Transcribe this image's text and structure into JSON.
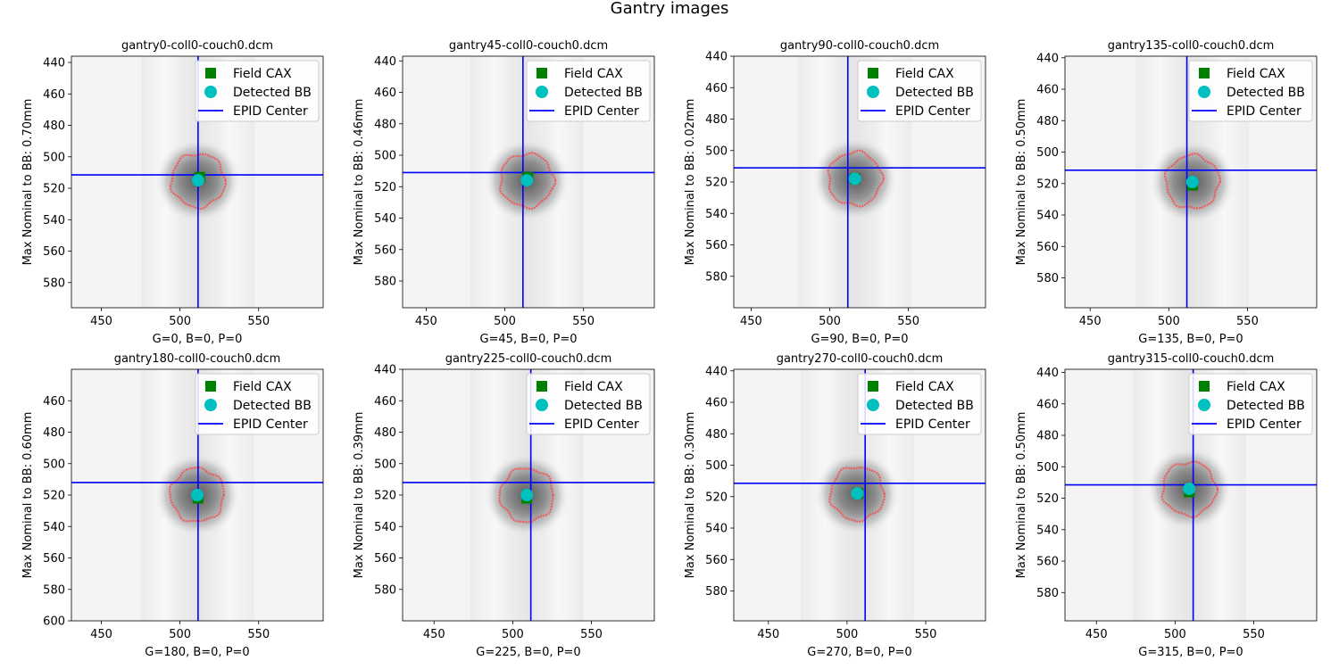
{
  "figure": {
    "title": "Gantry images"
  },
  "legend": {
    "field_cax": "Field CAX",
    "detected_bb": "Detected BB",
    "epid_center": "EPID Center"
  },
  "colors": {
    "field_cax": "#008000",
    "detected_bb": "#00bfbf",
    "epid_center": "#0000ff",
    "bb_contour": "#ff4040"
  },
  "chart_data": [
    {
      "type": "scatter",
      "title": "gantry0-coll0-couch0.dcm",
      "xlabel": "G=0, B=0, P=0",
      "ylabel": "Max Nominal to BB: 0.70mm",
      "xlim": [
        431,
        591
      ],
      "ylim": [
        596,
        436
      ],
      "xticks": [
        450,
        500,
        550
      ],
      "yticks": [
        440,
        460,
        480,
        500,
        520,
        540,
        560,
        580
      ],
      "epid_center": [
        511.5,
        511.5
      ],
      "field_cax": [
        512.5,
        513
      ],
      "detected_bb": [
        511.5,
        515
      ],
      "bb_radius": 17,
      "legend_position": "upper right"
    },
    {
      "type": "scatter",
      "title": "gantry45-coll0-couch0.dcm",
      "xlabel": "G=45, B=0, P=0",
      "ylabel": "Max Nominal to BB: 0.46mm",
      "xlim": [
        435,
        595
      ],
      "ylim": [
        597,
        437
      ],
      "xticks": [
        450,
        500,
        550
      ],
      "yticks": [
        440,
        460,
        480,
        500,
        520,
        540,
        560,
        580
      ],
      "epid_center": [
        511.5,
        511
      ],
      "field_cax": [
        514.5,
        514
      ],
      "detected_bb": [
        514,
        516
      ],
      "bb_radius": 17,
      "legend_position": "upper right"
    },
    {
      "type": "scatter",
      "title": "gantry90-coll0-couch0.dcm",
      "xlabel": "G=90, B=0, P=0",
      "ylabel": "Max Nominal to BB: 0.02mm",
      "xlim": [
        439,
        599
      ],
      "ylim": [
        600,
        440
      ],
      "xticks": [
        450,
        500,
        550
      ],
      "yticks": [
        440,
        460,
        480,
        500,
        520,
        540,
        560,
        580
      ],
      "epid_center": [
        511.5,
        511
      ],
      "field_cax": [
        516,
        518
      ],
      "detected_bb": [
        516,
        518
      ],
      "bb_radius": 17,
      "legend_position": "upper right"
    },
    {
      "type": "scatter",
      "title": "gantry135-coll0-couch0.dcm",
      "xlabel": "G=135, B=0, P=0",
      "ylabel": "Max Nominal to BB: 0.50mm",
      "xlim": [
        434,
        594
      ],
      "ylim": [
        599,
        439
      ],
      "xticks": [
        450,
        500,
        550
      ],
      "yticks": [
        440,
        460,
        480,
        500,
        520,
        540,
        560,
        580
      ],
      "epid_center": [
        511.5,
        511.5
      ],
      "field_cax": [
        515,
        521
      ],
      "detected_bb": [
        515,
        519
      ],
      "bb_radius": 17,
      "legend_position": "upper right"
    },
    {
      "type": "scatter",
      "title": "gantry180-coll0-couch0.dcm",
      "xlabel": "G=180, B=0, P=0",
      "ylabel": "Max Nominal to BB: 0.60mm",
      "xlim": [
        431,
        591
      ],
      "ylim": [
        600,
        440
      ],
      "xticks": [
        450,
        500,
        550
      ],
      "yticks": [
        460,
        480,
        500,
        520,
        540,
        560,
        580,
        600
      ],
      "epid_center": [
        511.5,
        512
      ],
      "field_cax": [
        511.5,
        522
      ],
      "detected_bb": [
        511,
        520
      ],
      "bb_radius": 17,
      "legend_position": "upper right"
    },
    {
      "type": "scatter",
      "title": "gantry225-coll0-couch0.dcm",
      "xlabel": "G=225, B=0, P=0",
      "ylabel": "Max Nominal to BB: 0.39mm",
      "xlim": [
        430,
        590
      ],
      "ylim": [
        600,
        440
      ],
      "xticks": [
        450,
        500,
        550
      ],
      "yticks": [
        440,
        460,
        480,
        500,
        520,
        540,
        560,
        580
      ],
      "epid_center": [
        511.5,
        512
      ],
      "field_cax": [
        509,
        522
      ],
      "detected_bb": [
        509,
        520
      ],
      "bb_radius": 17,
      "legend_position": "upper right"
    },
    {
      "type": "scatter",
      "title": "gantry270-coll0-couch0.dcm",
      "xlabel": "G=270, B=0, P=0",
      "ylabel": "Max Nominal to BB: 0.30mm",
      "xlim": [
        428,
        588
      ],
      "ylim": [
        599,
        439
      ],
      "xticks": [
        450,
        500,
        550
      ],
      "yticks": [
        440,
        460,
        480,
        500,
        520,
        540,
        560,
        580
      ],
      "epid_center": [
        511.5,
        511.5
      ],
      "field_cax": [
        507,
        518
      ],
      "detected_bb": [
        506.5,
        518
      ],
      "bb_radius": 17,
      "legend_position": "upper right"
    },
    {
      "type": "scatter",
      "title": "gantry315-coll0-couch0.dcm",
      "xlabel": "G=315, B=0, P=0",
      "ylabel": "Max Nominal to BB: 0.50mm",
      "xlim": [
        430,
        590
      ],
      "ylim": [
        598,
        438
      ],
      "xticks": [
        450,
        500,
        550
      ],
      "yticks": [
        440,
        460,
        480,
        500,
        520,
        540,
        560,
        580
      ],
      "epid_center": [
        511.5,
        511.5
      ],
      "field_cax": [
        509,
        516
      ],
      "detected_bb": [
        509,
        514
      ],
      "bb_radius": 17,
      "legend_position": "upper right"
    }
  ]
}
